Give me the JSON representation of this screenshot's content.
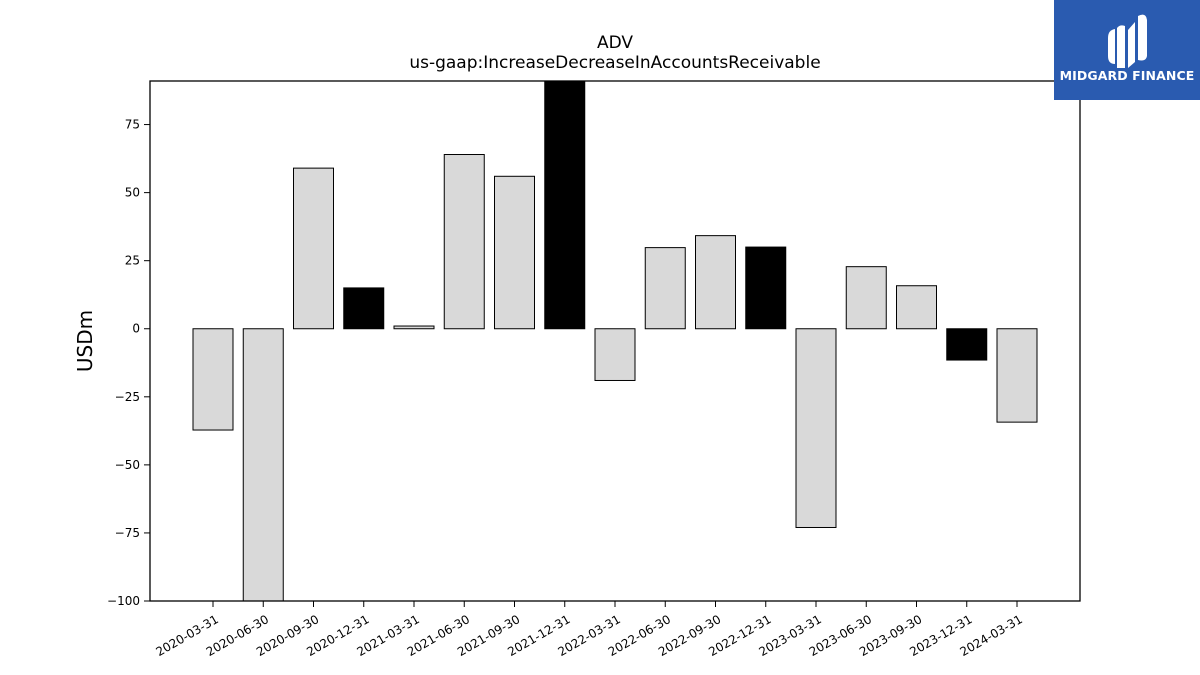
{
  "brand": {
    "name": "MIDGARD FINANCE",
    "bg_color": "#2a5bb0",
    "icon": "midgard-logo-icon"
  },
  "colors": {
    "normal_bar": "#d9d9d9",
    "highlight_bar": "#000000",
    "bar_edge": "#000000"
  },
  "chart_data": {
    "type": "bar",
    "title": "ADV",
    "subtitle": "us-gaap:IncreaseDecreaseInAccountsReceivable",
    "xlabel": "",
    "ylabel": "USDm",
    "ylim": [
      -100,
      91
    ],
    "yticks": [
      -100,
      -75,
      -50,
      -25,
      0,
      25,
      50,
      75
    ],
    "grid": false,
    "categories": [
      "2020-03-31",
      "2020-06-30",
      "2020-09-30",
      "2020-12-31",
      "2021-03-31",
      "2021-06-30",
      "2021-09-30",
      "2021-12-31",
      "2022-03-31",
      "2022-06-30",
      "2022-09-30",
      "2022-12-31",
      "2023-03-31",
      "2023-06-30",
      "2023-09-30",
      "2023-12-31",
      "2024-03-31"
    ],
    "values": [
      -37.2,
      -100,
      59.0,
      15.0,
      1.0,
      64.0,
      56.0,
      91.0,
      -19.0,
      29.8,
      34.2,
      30.0,
      -73.0,
      22.8,
      15.8,
      -11.5,
      -34.3
    ],
    "highlight": [
      false,
      false,
      false,
      true,
      false,
      false,
      false,
      true,
      false,
      false,
      false,
      true,
      false,
      false,
      false,
      true,
      false
    ]
  }
}
